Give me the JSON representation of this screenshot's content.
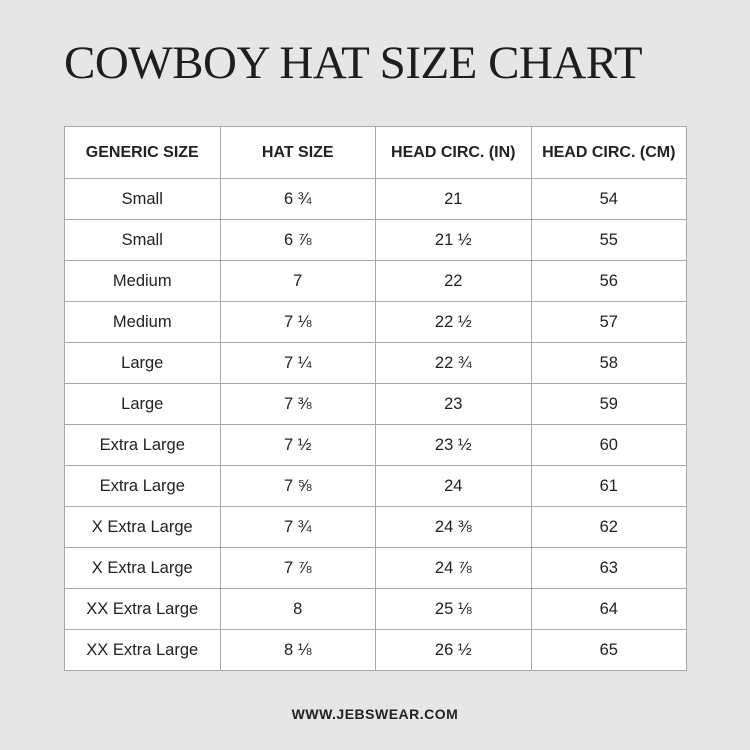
{
  "header": {
    "title": "COWBOY HAT SIZE CHART"
  },
  "table": {
    "columns": [
      "GENERIC SIZE",
      "HAT SIZE",
      "HEAD CIRC. (IN)",
      "HEAD CIRC. (CM)"
    ],
    "rows": [
      [
        "Small",
        "6 ¾",
        "21",
        "54"
      ],
      [
        "Small",
        "6 ⅞",
        "21 ½",
        "55"
      ],
      [
        "Medium",
        "7",
        "22",
        "56"
      ],
      [
        "Medium",
        "7 ⅛",
        "22 ½",
        "57"
      ],
      [
        "Large",
        "7 ¼",
        "22 ¾",
        "58"
      ],
      [
        "Large",
        "7 ⅜",
        "23",
        "59"
      ],
      [
        "Extra Large",
        "7 ½",
        "23 ½",
        "60"
      ],
      [
        "Extra Large",
        "7 ⅝",
        "24",
        "61"
      ],
      [
        "X Extra Large",
        "7 ¾",
        "24 ⅜",
        "62"
      ],
      [
        "X Extra Large",
        "7 ⅞",
        "24 ⅞",
        "63"
      ],
      [
        "XX Extra Large",
        "8",
        "25 ⅛",
        "64"
      ],
      [
        "XX Extra Large",
        "8 ⅛",
        "26 ½",
        "65"
      ]
    ]
  },
  "footer": {
    "website": "WWW.JEBSWEAR.COM"
  }
}
